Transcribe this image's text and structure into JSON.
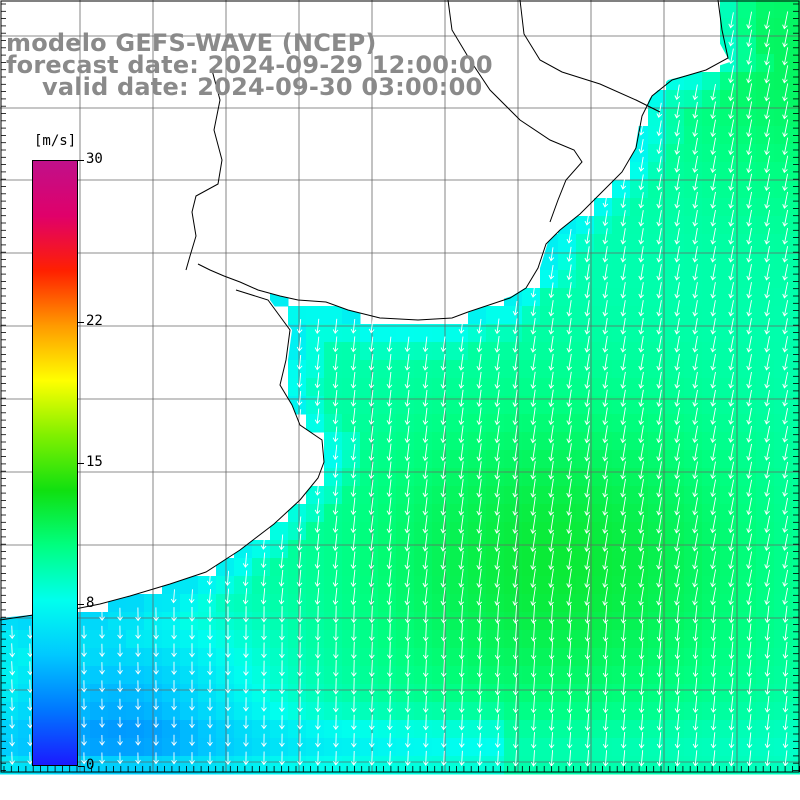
{
  "title": {
    "line1": "modelo GEFS-WAVE (NCEP)",
    "line2": "forecast date: 2024-09-29 12:00:00",
    "line3": "valid date: 2024-09-30 03:00:00"
  },
  "colorbar": {
    "unit": "[m/s]",
    "min": 0,
    "max": 30,
    "ticks": [
      {
        "label": "30",
        "value": 30
      },
      {
        "label": "22",
        "value": 22
      },
      {
        "label": "15",
        "value": 15
      },
      {
        "label": "8",
        "value": 8
      },
      {
        "label": "0",
        "value": 0
      }
    ],
    "colors": [
      "#1a1aff",
      "#0077ff",
      "#00c8ff",
      "#00ffee",
      "#00ff80",
      "#10e010",
      "#80f000",
      "#ffff00",
      "#ff9a00",
      "#ff2000",
      "#e0006a",
      "#c0108a"
    ]
  },
  "map": {
    "variable": "wind speed and direction",
    "land_color": "#ffffff",
    "grid_color": "#666666",
    "vector_color": "#ffffff",
    "coastline_color": "#000000",
    "dominant_wind": "from north, blowing southward",
    "speed_range_shown": [
      3,
      13
    ]
  }
}
